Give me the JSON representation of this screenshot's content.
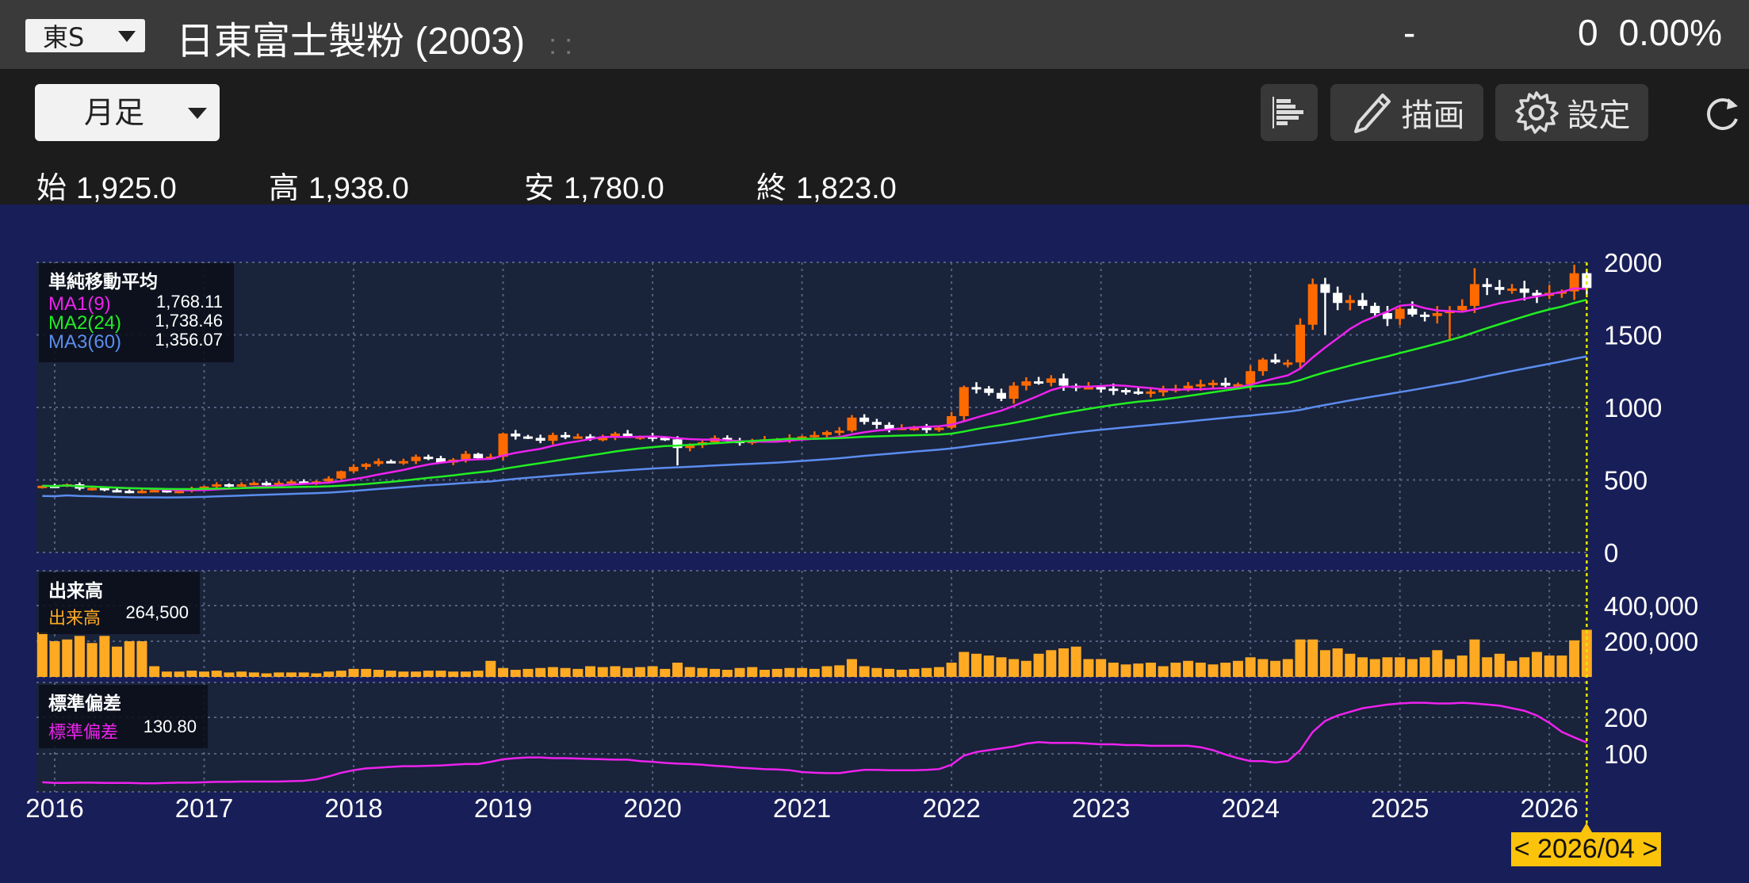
{
  "header": {
    "market": "東S",
    "title": "日東富士製粉 (2003)",
    "separator": ": :",
    "price": "-",
    "change": "0",
    "change_pct": "0.00%"
  },
  "toolbar": {
    "period": "月足",
    "draw_label": "描画",
    "settings_label": "設定"
  },
  "ohlc": {
    "open_label": "始",
    "open": "1,925.0",
    "high_label": "高",
    "high": "1,938.0",
    "low_label": "安",
    "low": "1,780.0",
    "close_label": "終",
    "close": "1,823.0"
  },
  "legends": {
    "ma_title": "単純移動平均",
    "ma": [
      {
        "label": "MA1(9)",
        "value": "1,768.11",
        "color": "#ee22ee"
      },
      {
        "label": "MA2(24)",
        "value": "1,738.46",
        "color": "#22ee22"
      },
      {
        "label": "MA3(60)",
        "value": "1,356.07",
        "color": "#5b8def"
      }
    ],
    "volume_title": "出来高",
    "volume_label": "出来高",
    "volume_value": "264,500",
    "sd_title": "標準偏差",
    "sd_label": "標準偏差",
    "sd_value": "130.80"
  },
  "cursor_date": "< 2026/04 >",
  "colors": {
    "up": "#ff6a00",
    "down": "#ffffff",
    "volume": "#ffaa22",
    "sd": "#ee22ee"
  },
  "chart_data": {
    "type": "candlestick",
    "start_month": "2015/12",
    "x_tick_labels": [
      "2016",
      "2017",
      "2018",
      "2019",
      "2020",
      "2021",
      "2022",
      "2023",
      "2024",
      "2025",
      "2026"
    ],
    "price_axis": {
      "ticks": [
        "2000",
        "1500",
        "1000",
        "500",
        "0"
      ],
      "ylim": [
        0,
        2000
      ]
    },
    "volume_axis": {
      "ticks": [
        "400,000",
        "200,000"
      ],
      "ylim": [
        0,
        400000
      ]
    },
    "sd_axis": {
      "ticks": [
        "200",
        "100"
      ],
      "ylim": [
        0,
        300
      ]
    },
    "ma_periods": [
      9,
      24,
      60
    ],
    "last_candle": {
      "open": 1925,
      "high": 1938,
      "low": 1780,
      "close": 1823
    },
    "close": [
      460,
      455,
      470,
      440,
      445,
      430,
      425,
      420,
      425,
      430,
      420,
      425,
      440,
      455,
      470,
      465,
      470,
      480,
      470,
      480,
      490,
      480,
      490,
      510,
      560,
      590,
      610,
      630,
      620,
      630,
      660,
      650,
      620,
      640,
      680,
      650,
      660,
      820,
      800,
      790,
      770,
      810,
      800,
      800,
      790,
      790,
      820,
      800,
      800,
      790,
      780,
      720,
      740,
      760,
      790,
      770,
      760,
      770,
      780,
      780,
      790,
      800,
      810,
      830,
      840,
      930,
      900,
      880,
      850,
      860,
      860,
      850,
      860,
      940,
      1140,
      1130,
      1100,
      1060,
      1150,
      1180,
      1170,
      1200,
      1150,
      1140,
      1140,
      1130,
      1120,
      1110,
      1100,
      1110,
      1120,
      1130,
      1150,
      1160,
      1170,
      1150,
      1160,
      1250,
      1330,
      1310,
      1310,
      1570,
      1850,
      1790,
      1720,
      1740,
      1700,
      1650,
      1610,
      1680,
      1640,
      1630,
      1650,
      1670,
      1700,
      1850,
      1830,
      1810,
      1820,
      1790,
      1770,
      1790,
      1800,
      1925,
      1823
    ],
    "wick_extremes": {
      "51": {
        "low": 600
      },
      "103": {
        "low": 1500
      },
      "113": {
        "low": 1460
      },
      "115": {
        "high": 1960
      }
    },
    "volume": [
      250000,
      200000,
      210000,
      230000,
      190000,
      230000,
      170000,
      200000,
      200000,
      60000,
      30000,
      30000,
      35000,
      30000,
      35000,
      25000,
      30000,
      25000,
      20000,
      25000,
      25000,
      25000,
      20000,
      30000,
      35000,
      45000,
      45000,
      40000,
      35000,
      30000,
      30000,
      35000,
      35000,
      30000,
      30000,
      35000,
      90000,
      50000,
      40000,
      45000,
      50000,
      55000,
      50000,
      45000,
      60000,
      55000,
      60000,
      50000,
      55000,
      60000,
      45000,
      80000,
      55000,
      50000,
      45000,
      40000,
      50000,
      55000,
      40000,
      45000,
      50000,
      50000,
      45000,
      60000,
      65000,
      100000,
      60000,
      50000,
      45000,
      40000,
      45000,
      50000,
      55000,
      80000,
      140000,
      130000,
      120000,
      110000,
      100000,
      90000,
      130000,
      150000,
      160000,
      170000,
      100000,
      100000,
      80000,
      70000,
      75000,
      80000,
      60000,
      80000,
      90000,
      80000,
      70000,
      80000,
      90000,
      110000,
      100000,
      90000,
      100000,
      210000,
      210000,
      150000,
      160000,
      130000,
      110000,
      100000,
      110000,
      110000,
      100000,
      110000,
      150000,
      100000,
      120000,
      210000,
      110000,
      130000,
      90000,
      110000,
      140000,
      120000,
      120000,
      205000,
      264500
    ],
    "std_dev": [
      22,
      20,
      20,
      21,
      21,
      20,
      20,
      20,
      19,
      19,
      20,
      21,
      21,
      22,
      23,
      23,
      24,
      24,
      24,
      24,
      25,
      26,
      30,
      38,
      48,
      55,
      60,
      62,
      64,
      66,
      66,
      67,
      68,
      70,
      72,
      72,
      78,
      85,
      88,
      90,
      90,
      88,
      88,
      87,
      86,
      85,
      84,
      84,
      80,
      78,
      75,
      73,
      72,
      70,
      67,
      65,
      62,
      60,
      58,
      57,
      55,
      50,
      48,
      47,
      47,
      52,
      56,
      56,
      55,
      55,
      55,
      56,
      58,
      70,
      95,
      105,
      110,
      115,
      120,
      128,
      132,
      130,
      130,
      130,
      128,
      126,
      126,
      124,
      124,
      122,
      122,
      122,
      122,
      118,
      110,
      98,
      88,
      80,
      80,
      76,
      80,
      110,
      160,
      190,
      205,
      215,
      225,
      230,
      235,
      238,
      240,
      240,
      238,
      238,
      240,
      238,
      235,
      232,
      225,
      218,
      205,
      185,
      160,
      145,
      130.8
    ]
  }
}
